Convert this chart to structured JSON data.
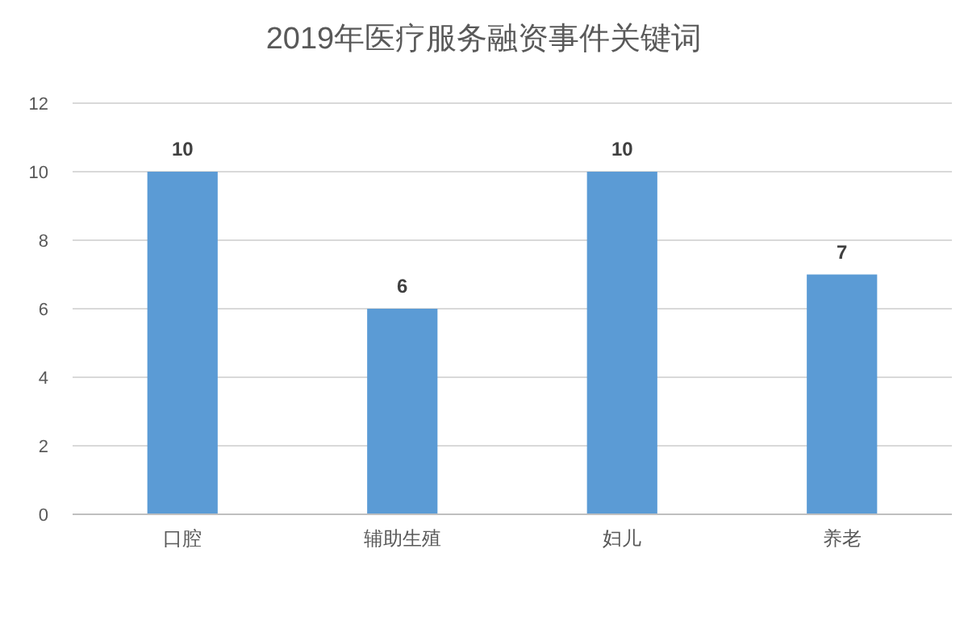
{
  "chart_data": {
    "type": "bar",
    "title": "2019年医疗服务融资事件关键词",
    "categories": [
      "口腔",
      "辅助生殖",
      "妇儿",
      "养老"
    ],
    "series": [
      {
        "color": "#5b9bd5",
        "values": [
          10,
          6,
          10,
          7
        ]
      }
    ],
    "ylim": [
      0,
      12
    ],
    "yticks": [
      0,
      2,
      4,
      6,
      8,
      10,
      12
    ],
    "grid": "y",
    "data_labels": true
  }
}
